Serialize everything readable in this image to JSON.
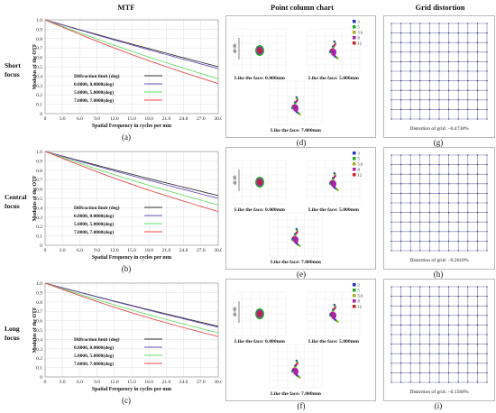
{
  "headers": {
    "mtf": "MTF",
    "spot": "Point column chart",
    "grid": "Grid distortion"
  },
  "rows": [
    {
      "label_lines": [
        "Short",
        "focus"
      ],
      "mtf_letter": "(a)",
      "spot_letter": "(d)",
      "grid_letter": "(g)",
      "distortion_text": "Distortion of grid: −0.4738%",
      "mtf_curves": {
        "diff": [
          1,
          0.5
        ],
        "s0": [
          1,
          0.48
        ],
        "s5": [
          1,
          0.37
        ],
        "s7": [
          1,
          0.32
        ]
      }
    },
    {
      "label_lines": [
        "Central",
        "focus"
      ],
      "mtf_letter": "(b)",
      "spot_letter": "(e)",
      "grid_letter": "(h)",
      "distortion_text": "Distortion of grid: −0.2610%",
      "mtf_curves": {
        "diff": [
          1,
          0.53
        ],
        "s0": [
          1,
          0.5
        ],
        "s5": [
          1,
          0.43
        ],
        "s7": [
          1,
          0.36
        ]
      }
    },
    {
      "label_lines": [
        "Long",
        "focus"
      ],
      "mtf_letter": "(c)",
      "spot_letter": "(f)",
      "grid_letter": "(i)",
      "distortion_text": "Distortion of grid: −0.1568%",
      "mtf_curves": {
        "diff": [
          1,
          0.54
        ],
        "s0": [
          1,
          0.53
        ],
        "s5": [
          1,
          0.47
        ],
        "s7": [
          1,
          0.43
        ]
      }
    }
  ],
  "mtf_axes": {
    "ylabel": "Modulus of the OTF",
    "xlabel": "Spatial Frequency in cycles per mm",
    "xticks": [
      "0",
      "3.0",
      "6.0",
      "9.0",
      "12.0",
      "15.0",
      "18.0",
      "21.0",
      "24.0",
      "27.0",
      "30.0"
    ],
    "yticks": [
      "0",
      "0.1",
      "0.2",
      "0.3",
      "0.4",
      "0.5",
      "0.6",
      "0.7",
      "0.8",
      "0.9",
      "1.0"
    ]
  },
  "mtf_legend": [
    "Diffraction limit (deg)",
    "0.0000,  0.0000(deg)",
    "5.0000,  5.0000(deg)",
    "7.0000,  7.0000(deg)"
  ],
  "series_colors": {
    "diff": "#333333",
    "s0": "#6a4fb3",
    "s5": "#66dd66",
    "s7": "#e84a4a"
  },
  "spot": {
    "captions": [
      "Like the face: 0.000mm",
      "Like the face: 5.000mm",
      "Like the face: 7.000mm"
    ],
    "scale_label": "40.00",
    "legend": [
      "3",
      "5",
      "5.6",
      "8",
      "12"
    ],
    "legend_colors": [
      "#2233cc",
      "#22aa22",
      "#aaaa22",
      "#aa22aa",
      "#cc2222"
    ]
  },
  "chart_data": {
    "type": "line",
    "title": "MTF",
    "xlabel": "Spatial Frequency in cycles per mm",
    "ylabel": "Modulus of the OTF",
    "xlim": [
      0,
      30
    ],
    "ylim": [
      0,
      1
    ],
    "series": [
      {
        "name": "Diffraction limit (deg)",
        "short_focus": [
          [
            0,
            1
          ],
          [
            30,
            0.5
          ]
        ],
        "central_focus": [
          [
            0,
            1
          ],
          [
            30,
            0.53
          ]
        ],
        "long_focus": [
          [
            0,
            1
          ],
          [
            30,
            0.54
          ]
        ]
      },
      {
        "name": "0.0000,  0.0000(deg)",
        "short_focus": [
          [
            0,
            1
          ],
          [
            30,
            0.48
          ]
        ],
        "central_focus": [
          [
            0,
            1
          ],
          [
            30,
            0.5
          ]
        ],
        "long_focus": [
          [
            0,
            1
          ],
          [
            30,
            0.53
          ]
        ]
      },
      {
        "name": "5.0000,  5.0000(deg)",
        "short_focus": [
          [
            0,
            1
          ],
          [
            30,
            0.37
          ]
        ],
        "central_focus": [
          [
            0,
            1
          ],
          [
            30,
            0.43
          ]
        ],
        "long_focus": [
          [
            0,
            1
          ],
          [
            30,
            0.47
          ]
        ]
      },
      {
        "name": "7.0000,  7.0000(deg)",
        "short_focus": [
          [
            0,
            1
          ],
          [
            30,
            0.32
          ]
        ],
        "central_focus": [
          [
            0,
            1
          ],
          [
            30,
            0.36
          ]
        ],
        "long_focus": [
          [
            0,
            1
          ],
          [
            30,
            0.43
          ]
        ]
      }
    ]
  }
}
